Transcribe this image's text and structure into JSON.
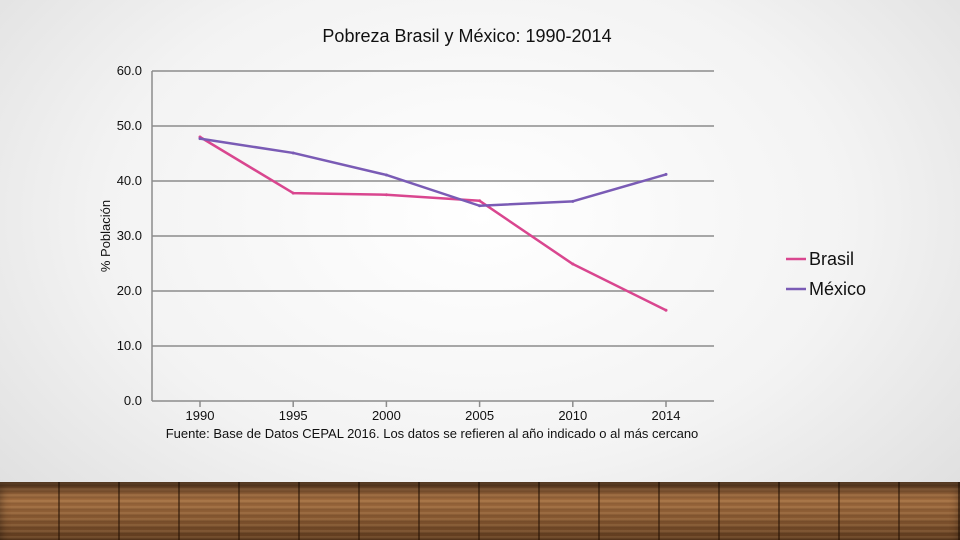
{
  "chart_data": {
    "type": "line",
    "title": "Pobreza Brasil y México: 1990-2014",
    "xlabel": "",
    "ylabel": "% Población",
    "x": [
      "1990",
      "1995",
      "2000",
      "2005",
      "2010",
      "2014"
    ],
    "y_ticks": [
      "0.0",
      "10.0",
      "20.0",
      "30.0",
      "40.0",
      "50.0",
      "60.0"
    ],
    "ylim": [
      0,
      60
    ],
    "grid": true,
    "legend_position": "right",
    "series": [
      {
        "name": "Brasil",
        "color": "#d9468f",
        "values": [
          48.0,
          37.8,
          37.5,
          36.4,
          24.9,
          16.5
        ]
      },
      {
        "name": "México",
        "color": "#7a5bb5",
        "values": [
          47.7,
          45.1,
          41.1,
          35.5,
          36.3,
          41.2
        ]
      }
    ],
    "source": "Fuente: Base de Datos CEPAL 2016. Los datos se refieren al año indicado o al más cercano"
  }
}
